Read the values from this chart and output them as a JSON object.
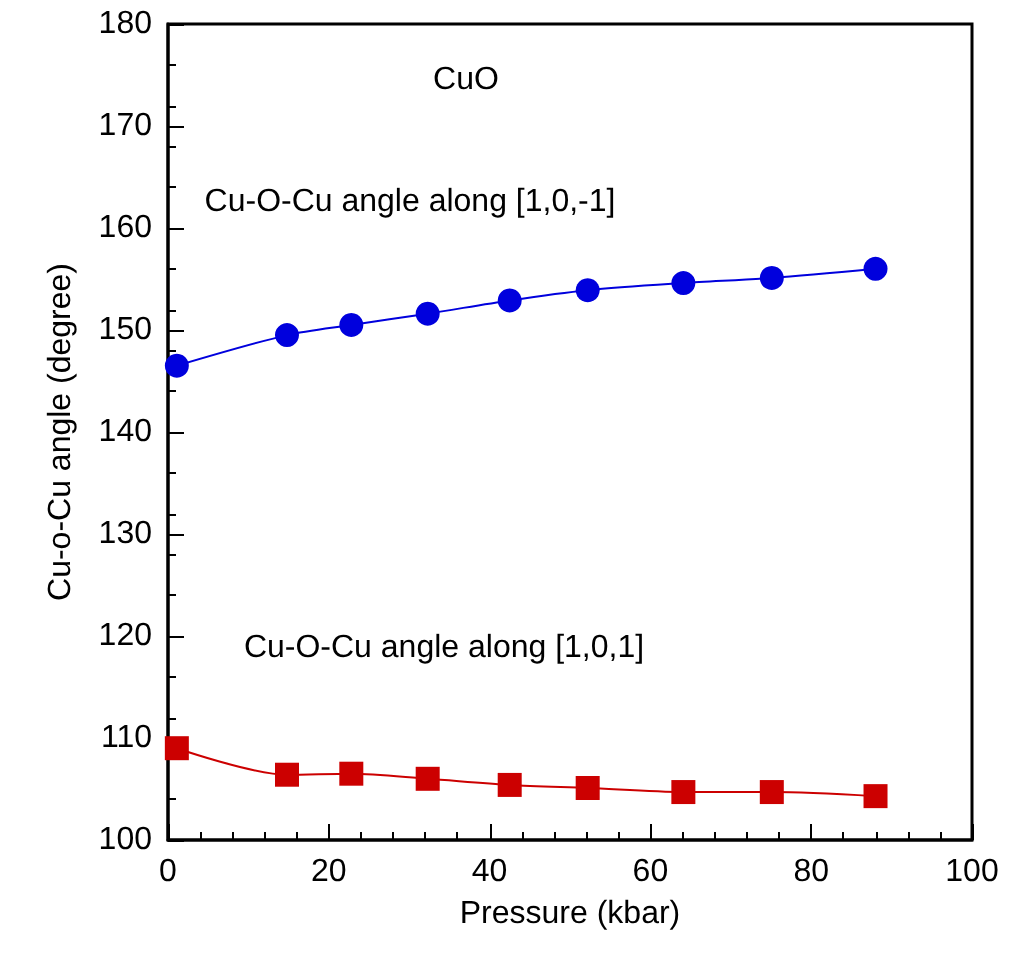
{
  "chart_data": {
    "type": "line",
    "xlabel": "Pressure (kbar)",
    "ylabel": "Cu-o-Cu angle (degree)",
    "annotations": [
      "CuO",
      "Cu-O-Cu angle along [1,0,-1]",
      "Cu-O-Cu angle along [1,0,1]"
    ],
    "series": [
      {
        "color": "#0000dd",
        "marker": "circle",
        "x": [
          1.1,
          14.8,
          22.8,
          32.3,
          42.5,
          52.2,
          64.1,
          75.1,
          88.0
        ],
        "values": [
          146.5,
          149.5,
          150.5,
          151.6,
          152.9,
          153.9,
          154.6,
          155.1,
          156.0
        ]
      },
      {
        "color": "#cc0000",
        "marker": "square",
        "x": [
          1.1,
          14.8,
          22.8,
          32.3,
          42.5,
          52.2,
          64.1,
          75.1,
          88.0
        ],
        "values": [
          109.0,
          106.4,
          106.5,
          106.0,
          105.4,
          105.1,
          104.7,
          104.7,
          104.3
        ]
      }
    ],
    "xlim": [
      0,
      100
    ],
    "xticks": [
      0,
      20,
      40,
      60,
      80,
      100
    ],
    "ylim": [
      100,
      180
    ],
    "yticks": [
      100,
      110,
      120,
      130,
      140,
      150,
      160,
      170,
      180
    ],
    "grid": false
  }
}
